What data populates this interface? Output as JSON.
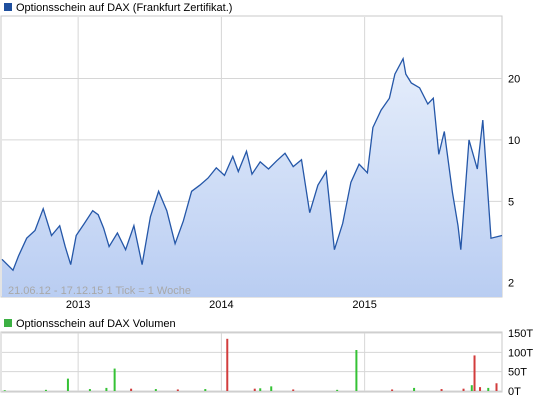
{
  "price_panel": {
    "legend_label": "Optionsschein auf DAX  (Frankfurt Zertifikat.)",
    "range_note": "21.06.12 - 17.12.15   1 Tick = 1 Woche"
  },
  "volume_panel": {
    "legend_label": "Optionsschein auf DAX  Volumen"
  },
  "colors": {
    "line": "#2557a8",
    "area_top": "#e6eefb",
    "area_bottom": "#b9cdf2",
    "legend_price": "#1f4f9e",
    "legend_volume": "#3cb043",
    "vol_up": "#35c235",
    "vol_down": "#d23c3c",
    "grid": "#d6d6d6"
  },
  "chart_data": [
    {
      "type": "area",
      "title": "Optionsschein auf DAX  (Frankfurt Zertifikat.)",
      "x_range": [
        "2012-06-21",
        "2015-12-17"
      ],
      "x_ticks": [
        {
          "date": "2013-01-01",
          "label": "2013"
        },
        {
          "date": "2014-01-01",
          "label": "2014"
        },
        {
          "date": "2015-01-01",
          "label": "2015"
        }
      ],
      "y_scale": "log",
      "ylim": [
        1.7,
        40
      ],
      "y_ticks": [
        {
          "value": 2,
          "label": "2"
        },
        {
          "value": 5,
          "label": "5"
        },
        {
          "value": 10,
          "label": "10"
        },
        {
          "value": 20,
          "label": "20"
        }
      ],
      "grid": true,
      "series": [
        {
          "name": "Optionsschein auf DAX",
          "points": [
            [
              "2012-06-21",
              2.6
            ],
            [
              "2012-07-19",
              2.3
            ],
            [
              "2012-08-02",
              2.7
            ],
            [
              "2012-08-23",
              3.3
            ],
            [
              "2012-09-13",
              3.6
            ],
            [
              "2012-10-04",
              4.6
            ],
            [
              "2012-10-25",
              3.4
            ],
            [
              "2012-11-15",
              3.8
            ],
            [
              "2012-11-29",
              3.0
            ],
            [
              "2012-12-13",
              2.45
            ],
            [
              "2012-12-27",
              3.4
            ],
            [
              "2013-01-17",
              3.9
            ],
            [
              "2013-02-07",
              4.5
            ],
            [
              "2013-02-21",
              4.3
            ],
            [
              "2013-03-07",
              3.7
            ],
            [
              "2013-03-21",
              3.0
            ],
            [
              "2013-04-11",
              3.5
            ],
            [
              "2013-05-02",
              2.9
            ],
            [
              "2013-05-23",
              3.8
            ],
            [
              "2013-06-13",
              2.45
            ],
            [
              "2013-07-04",
              4.2
            ],
            [
              "2013-07-25",
              5.6
            ],
            [
              "2013-08-15",
              4.5
            ],
            [
              "2013-09-05",
              3.1
            ],
            [
              "2013-09-26",
              4.0
            ],
            [
              "2013-10-17",
              5.6
            ],
            [
              "2013-11-07",
              6.0
            ],
            [
              "2013-11-28",
              6.5
            ],
            [
              "2013-12-19",
              7.3
            ],
            [
              "2014-01-09",
              6.7
            ],
            [
              "2014-01-30",
              8.3
            ],
            [
              "2014-02-13",
              7.0
            ],
            [
              "2014-03-06",
              8.8
            ],
            [
              "2014-03-20",
              6.8
            ],
            [
              "2014-04-10",
              7.8
            ],
            [
              "2014-05-01",
              7.2
            ],
            [
              "2014-05-22",
              7.9
            ],
            [
              "2014-06-12",
              8.6
            ],
            [
              "2014-07-03",
              7.4
            ],
            [
              "2014-07-24",
              8.0
            ],
            [
              "2014-08-14",
              4.4
            ],
            [
              "2014-09-04",
              6.0
            ],
            [
              "2014-09-25",
              7.0
            ],
            [
              "2014-10-16",
              2.9
            ],
            [
              "2014-11-06",
              3.9
            ],
            [
              "2014-11-27",
              6.2
            ],
            [
              "2014-12-18",
              7.6
            ],
            [
              "2015-01-08",
              6.9
            ],
            [
              "2015-01-22",
              11.5
            ],
            [
              "2015-02-12",
              14.0
            ],
            [
              "2015-03-05",
              16.0
            ],
            [
              "2015-03-19",
              21.0
            ],
            [
              "2015-04-09",
              25.0
            ],
            [
              "2015-04-16",
              21.0
            ],
            [
              "2015-04-30",
              19.0
            ],
            [
              "2015-05-21",
              18.0
            ],
            [
              "2015-06-11",
              15.0
            ],
            [
              "2015-06-25",
              16.0
            ],
            [
              "2015-07-09",
              8.5
            ],
            [
              "2015-07-23",
              11.0
            ],
            [
              "2015-08-13",
              5.5
            ],
            [
              "2015-08-27",
              3.8
            ],
            [
              "2015-09-03",
              2.9
            ],
            [
              "2015-09-24",
              10.0
            ],
            [
              "2015-10-15",
              7.2
            ],
            [
              "2015-10-29",
              12.5
            ],
            [
              "2015-11-19",
              3.3
            ],
            [
              "2015-12-17",
              3.4
            ]
          ]
        }
      ]
    },
    {
      "type": "bar",
      "title": "Optionsschein auf DAX  Volumen",
      "x_range": [
        "2012-06-21",
        "2015-12-17"
      ],
      "ylim": [
        0,
        150000
      ],
      "y_ticks": [
        {
          "value": 0,
          "label": "0T"
        },
        {
          "value": 50000,
          "label": "50T"
        },
        {
          "value": 100000,
          "label": "100T"
        },
        {
          "value": 150000,
          "label": "150T"
        }
      ],
      "grid": true,
      "series": [
        {
          "name": "Volumen",
          "points": [
            {
              "date": "2012-06-28",
              "value": 2000,
              "dir": "up"
            },
            {
              "date": "2012-10-11",
              "value": 3000,
              "dir": "up"
            },
            {
              "date": "2012-12-06",
              "value": 32000,
              "dir": "up"
            },
            {
              "date": "2013-01-31",
              "value": 5000,
              "dir": "up"
            },
            {
              "date": "2013-03-14",
              "value": 8000,
              "dir": "up"
            },
            {
              "date": "2013-04-04",
              "value": 58000,
              "dir": "up"
            },
            {
              "date": "2013-05-16",
              "value": 6000,
              "dir": "down"
            },
            {
              "date": "2013-07-18",
              "value": 5000,
              "dir": "up"
            },
            {
              "date": "2013-09-12",
              "value": 4000,
              "dir": "down"
            },
            {
              "date": "2013-11-21",
              "value": 5000,
              "dir": "up"
            },
            {
              "date": "2014-01-16",
              "value": 135000,
              "dir": "down"
            },
            {
              "date": "2014-03-27",
              "value": 6000,
              "dir": "down"
            },
            {
              "date": "2014-04-10",
              "value": 7000,
              "dir": "up"
            },
            {
              "date": "2014-05-08",
              "value": 12000,
              "dir": "up"
            },
            {
              "date": "2014-07-03",
              "value": 4000,
              "dir": "down"
            },
            {
              "date": "2014-10-23",
              "value": 3000,
              "dir": "up"
            },
            {
              "date": "2014-12-11",
              "value": 106000,
              "dir": "up"
            },
            {
              "date": "2015-03-12",
              "value": 4000,
              "dir": "down"
            },
            {
              "date": "2015-05-07",
              "value": 8000,
              "dir": "up"
            },
            {
              "date": "2015-07-16",
              "value": 5000,
              "dir": "down"
            },
            {
              "date": "2015-09-10",
              "value": 6000,
              "dir": "down"
            },
            {
              "date": "2015-10-01",
              "value": 15000,
              "dir": "up"
            },
            {
              "date": "2015-10-08",
              "value": 92000,
              "dir": "down"
            },
            {
              "date": "2015-10-22",
              "value": 10000,
              "dir": "down"
            },
            {
              "date": "2015-11-12",
              "value": 8000,
              "dir": "up"
            },
            {
              "date": "2015-12-03",
              "value": 20000,
              "dir": "down"
            }
          ]
        }
      ]
    }
  ]
}
